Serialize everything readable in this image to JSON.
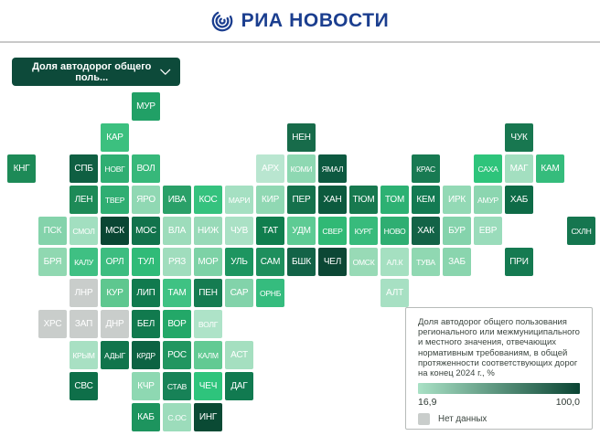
{
  "header": {
    "brand": "РИА НОВОСТИ",
    "brand_color": "#1b3e8f"
  },
  "filter": {
    "label": "Доля автодорог общего поль...",
    "background": "#0d4a3a"
  },
  "legend": {
    "title": "Доля автодорог общего пользования регионального или межмуниципального и местного значения, отвечающих нормативным требованиям, в общей протяженности соответствующих дорог на конец 2024 г., %",
    "min_label": "16,9",
    "max_label": "100,0",
    "gradient_from": "#a9e1c5",
    "gradient_to": "#0a4433",
    "no_data_label": "Нет данных",
    "no_data_color": "#c9cdcb"
  },
  "chart_data": {
    "type": "heatmap",
    "subtype": "tile-cartogram",
    "title": "Доля автодорог общего пользования регионального или межмуниципального и местного значения, отвечающих нормативным требованиям, в общей протяженности соответствующих дорог на конец 2024 г., %",
    "scale": {
      "min": 16.9,
      "max": 100.0,
      "no_data_color": "#c9cdcb"
    },
    "grid": {
      "cols": 19,
      "rows": 11,
      "cell": 31,
      "step": 34
    },
    "legend_position": "bottom-right",
    "tiles": [
      {
        "label": "МУР",
        "row": 0,
        "col": 4,
        "color": "#21a066"
      },
      {
        "label": "КАР",
        "row": 1,
        "col": 3,
        "color": "#3cc07f"
      },
      {
        "label": "НЕН",
        "row": 1,
        "col": 9,
        "color": "#176b4a"
      },
      {
        "label": "ЧУК",
        "row": 1,
        "col": 16,
        "color": "#187750"
      },
      {
        "label": "КНГ",
        "row": 2,
        "col": 0,
        "color": "#1d8a57"
      },
      {
        "label": "СПБ",
        "row": 2,
        "col": 2,
        "color": "#0f5f42"
      },
      {
        "label": "НОВГ",
        "row": 2,
        "col": 3,
        "color": "#2fae72"
      },
      {
        "label": "ВОЛ",
        "row": 2,
        "col": 4,
        "color": "#37b87a"
      },
      {
        "label": "АРХ",
        "row": 2,
        "col": 8,
        "color": "#b9e6d0"
      },
      {
        "label": "КОМИ",
        "row": 2,
        "col": 9,
        "color": "#8ed8b2"
      },
      {
        "label": "ЯМАЛ",
        "row": 2,
        "col": 10,
        "color": "#0d5940"
      },
      {
        "label": "КРАС",
        "row": 2,
        "col": 13,
        "color": "#187a52"
      },
      {
        "label": "САХА",
        "row": 2,
        "col": 15,
        "color": "#2ec47b"
      },
      {
        "label": "МАГ",
        "row": 2,
        "col": 16,
        "color": "#a3dfc0"
      },
      {
        "label": "КАМ",
        "row": 2,
        "col": 17,
        "color": "#35bc7c"
      },
      {
        "label": "ЛЕН",
        "row": 3,
        "col": 2,
        "color": "#1d8a57"
      },
      {
        "label": "ТВЕР",
        "row": 3,
        "col": 3,
        "color": "#2fae72"
      },
      {
        "label": "ЯРО",
        "row": 3,
        "col": 4,
        "color": "#90d8b3"
      },
      {
        "label": "ИВА",
        "row": 3,
        "col": 5,
        "color": "#2aa068"
      },
      {
        "label": "КОС",
        "row": 3,
        "col": 6,
        "color": "#35c27e"
      },
      {
        "label": "МАРИ",
        "row": 3,
        "col": 7,
        "color": "#a5e0c2"
      },
      {
        "label": "КИР",
        "row": 3,
        "col": 8,
        "color": "#90d8b3"
      },
      {
        "label": "ПЕР",
        "row": 3,
        "col": 9,
        "color": "#15714c"
      },
      {
        "label": "ХАН",
        "row": 3,
        "col": 10,
        "color": "#0c5a3e"
      },
      {
        "label": "ТЮМ",
        "row": 3,
        "col": 11,
        "color": "#17794f"
      },
      {
        "label": "ТОМ",
        "row": 3,
        "col": 12,
        "color": "#2db173"
      },
      {
        "label": "КЕМ",
        "row": 3,
        "col": 13,
        "color": "#137a52"
      },
      {
        "label": "ИРК",
        "row": 3,
        "col": 14,
        "color": "#93d9b5"
      },
      {
        "label": "АМУР",
        "row": 3,
        "col": 15,
        "color": "#8cd6b0"
      },
      {
        "label": "ХАБ",
        "row": 3,
        "col": 16,
        "color": "#0e6b47"
      },
      {
        "label": "ПСК",
        "row": 4,
        "col": 1,
        "color": "#84d3ab"
      },
      {
        "label": "СМОЛ",
        "row": 4,
        "col": 2,
        "color": "#a2dfc0"
      },
      {
        "label": "МСК",
        "row": 4,
        "col": 3,
        "color": "#0a4633"
      },
      {
        "label": "МОС",
        "row": 4,
        "col": 4,
        "color": "#12734c"
      },
      {
        "label": "ВЛА",
        "row": 4,
        "col": 5,
        "color": "#9ddcbb"
      },
      {
        "label": "НИЖ",
        "row": 4,
        "col": 6,
        "color": "#98dab8"
      },
      {
        "label": "ЧУВ",
        "row": 4,
        "col": 7,
        "color": "#aae1c5"
      },
      {
        "label": "ТАТ",
        "row": 4,
        "col": 8,
        "color": "#107e4e"
      },
      {
        "label": "УДМ",
        "row": 4,
        "col": 9,
        "color": "#5ecb94"
      },
      {
        "label": "СВЕР",
        "row": 4,
        "col": 10,
        "color": "#30b975"
      },
      {
        "label": "КУРГ",
        "row": 4,
        "col": 11,
        "color": "#38bb7c"
      },
      {
        "label": "НОВО",
        "row": 4,
        "col": 12,
        "color": "#2fae72"
      },
      {
        "label": "ХАК",
        "row": 4,
        "col": 13,
        "color": "#136347"
      },
      {
        "label": "БУР",
        "row": 4,
        "col": 14,
        "color": "#85d3ac"
      },
      {
        "label": "ЕВР",
        "row": 4,
        "col": 15,
        "color": "#9adcbb"
      },
      {
        "label": "СХЛН",
        "row": 4,
        "col": 18,
        "color": "#15764f"
      },
      {
        "label": "БРЯ",
        "row": 5,
        "col": 1,
        "color": "#90d8b1"
      },
      {
        "label": "КАЛУ",
        "row": 5,
        "col": 2,
        "color": "#3fc083"
      },
      {
        "label": "ОРЛ",
        "row": 5,
        "col": 3,
        "color": "#3dbd80"
      },
      {
        "label": "ТУЛ",
        "row": 5,
        "col": 4,
        "color": "#30bb78"
      },
      {
        "label": "РЯЗ",
        "row": 5,
        "col": 5,
        "color": "#a0ddbd"
      },
      {
        "label": "МОР",
        "row": 5,
        "col": 6,
        "color": "#7dd2a6"
      },
      {
        "label": "УЛЬ",
        "row": 5,
        "col": 7,
        "color": "#1d9560"
      },
      {
        "label": "САМ",
        "row": 5,
        "col": 8,
        "color": "#1e8f5d"
      },
      {
        "label": "БШК",
        "row": 5,
        "col": 9,
        "color": "#136347"
      },
      {
        "label": "ЧЕЛ",
        "row": 5,
        "col": 10,
        "color": "#0c4735"
      },
      {
        "label": "ОМСК",
        "row": 5,
        "col": 11,
        "color": "#98dab6"
      },
      {
        "label": "АЛ.К",
        "row": 5,
        "col": 12,
        "color": "#a5e0c1"
      },
      {
        "label": "ТУВА",
        "row": 5,
        "col": 13,
        "color": "#90d8b2"
      },
      {
        "label": "ЗАБ",
        "row": 5,
        "col": 14,
        "color": "#8ad5ae"
      },
      {
        "label": "ПРИ",
        "row": 5,
        "col": 16,
        "color": "#157a51"
      },
      {
        "label": "ЛНР",
        "row": 6,
        "col": 2,
        "color": "#c9cdcb"
      },
      {
        "label": "КУР",
        "row": 6,
        "col": 3,
        "color": "#5ec78f"
      },
      {
        "label": "ЛИП",
        "row": 6,
        "col": 4,
        "color": "#117a4e"
      },
      {
        "label": "ТАМ",
        "row": 6,
        "col": 5,
        "color": "#3fc283"
      },
      {
        "label": "ПЕН",
        "row": 6,
        "col": 6,
        "color": "#157c51"
      },
      {
        "label": "САР",
        "row": 6,
        "col": 7,
        "color": "#82d3aa"
      },
      {
        "label": "ОРНБ",
        "row": 6,
        "col": 8,
        "color": "#35bc7e"
      },
      {
        "label": "АЛТ",
        "row": 6,
        "col": 12,
        "color": "#a7e0c3"
      },
      {
        "label": "ХРС",
        "row": 7,
        "col": 1,
        "color": "#c9cdcb"
      },
      {
        "label": "ЗАП",
        "row": 7,
        "col": 2,
        "color": "#c9cdcb"
      },
      {
        "label": "ДНР",
        "row": 7,
        "col": 3,
        "color": "#c9cdcb"
      },
      {
        "label": "БЕЛ",
        "row": 7,
        "col": 4,
        "color": "#117a4e"
      },
      {
        "label": "ВОР",
        "row": 7,
        "col": 5,
        "color": "#23a868"
      },
      {
        "label": "ВОЛГ",
        "row": 7,
        "col": 6,
        "color": "#aee3c8"
      },
      {
        "label": "КРЫМ",
        "row": 8,
        "col": 2,
        "color": "#a8e0c3"
      },
      {
        "label": "АДЫГ",
        "row": 8,
        "col": 3,
        "color": "#11754c"
      },
      {
        "label": "КРДР",
        "row": 8,
        "col": 4,
        "color": "#0d6343"
      },
      {
        "label": "РОС",
        "row": 8,
        "col": 5,
        "color": "#219660"
      },
      {
        "label": "КАЛМ",
        "row": 8,
        "col": 6,
        "color": "#62ca93"
      },
      {
        "label": "АСТ",
        "row": 8,
        "col": 7,
        "color": "#a5dfc0"
      },
      {
        "label": "СВС",
        "row": 9,
        "col": 2,
        "color": "#0e6f49"
      },
      {
        "label": "КЧР",
        "row": 9,
        "col": 4,
        "color": "#8ed8b2"
      },
      {
        "label": "СТАВ",
        "row": 9,
        "col": 5,
        "color": "#178257"
      },
      {
        "label": "ЧЕЧ",
        "row": 9,
        "col": 6,
        "color": "#2ec47c"
      },
      {
        "label": "ДАГ",
        "row": 9,
        "col": 7,
        "color": "#117a50"
      },
      {
        "label": "КАБ",
        "row": 10,
        "col": 4,
        "color": "#1d945e"
      },
      {
        "label": "С.ОС",
        "row": 10,
        "col": 5,
        "color": "#9cdcbb"
      },
      {
        "label": "ИНГ",
        "row": 10,
        "col": 6,
        "color": "#0a4a34"
      }
    ]
  }
}
